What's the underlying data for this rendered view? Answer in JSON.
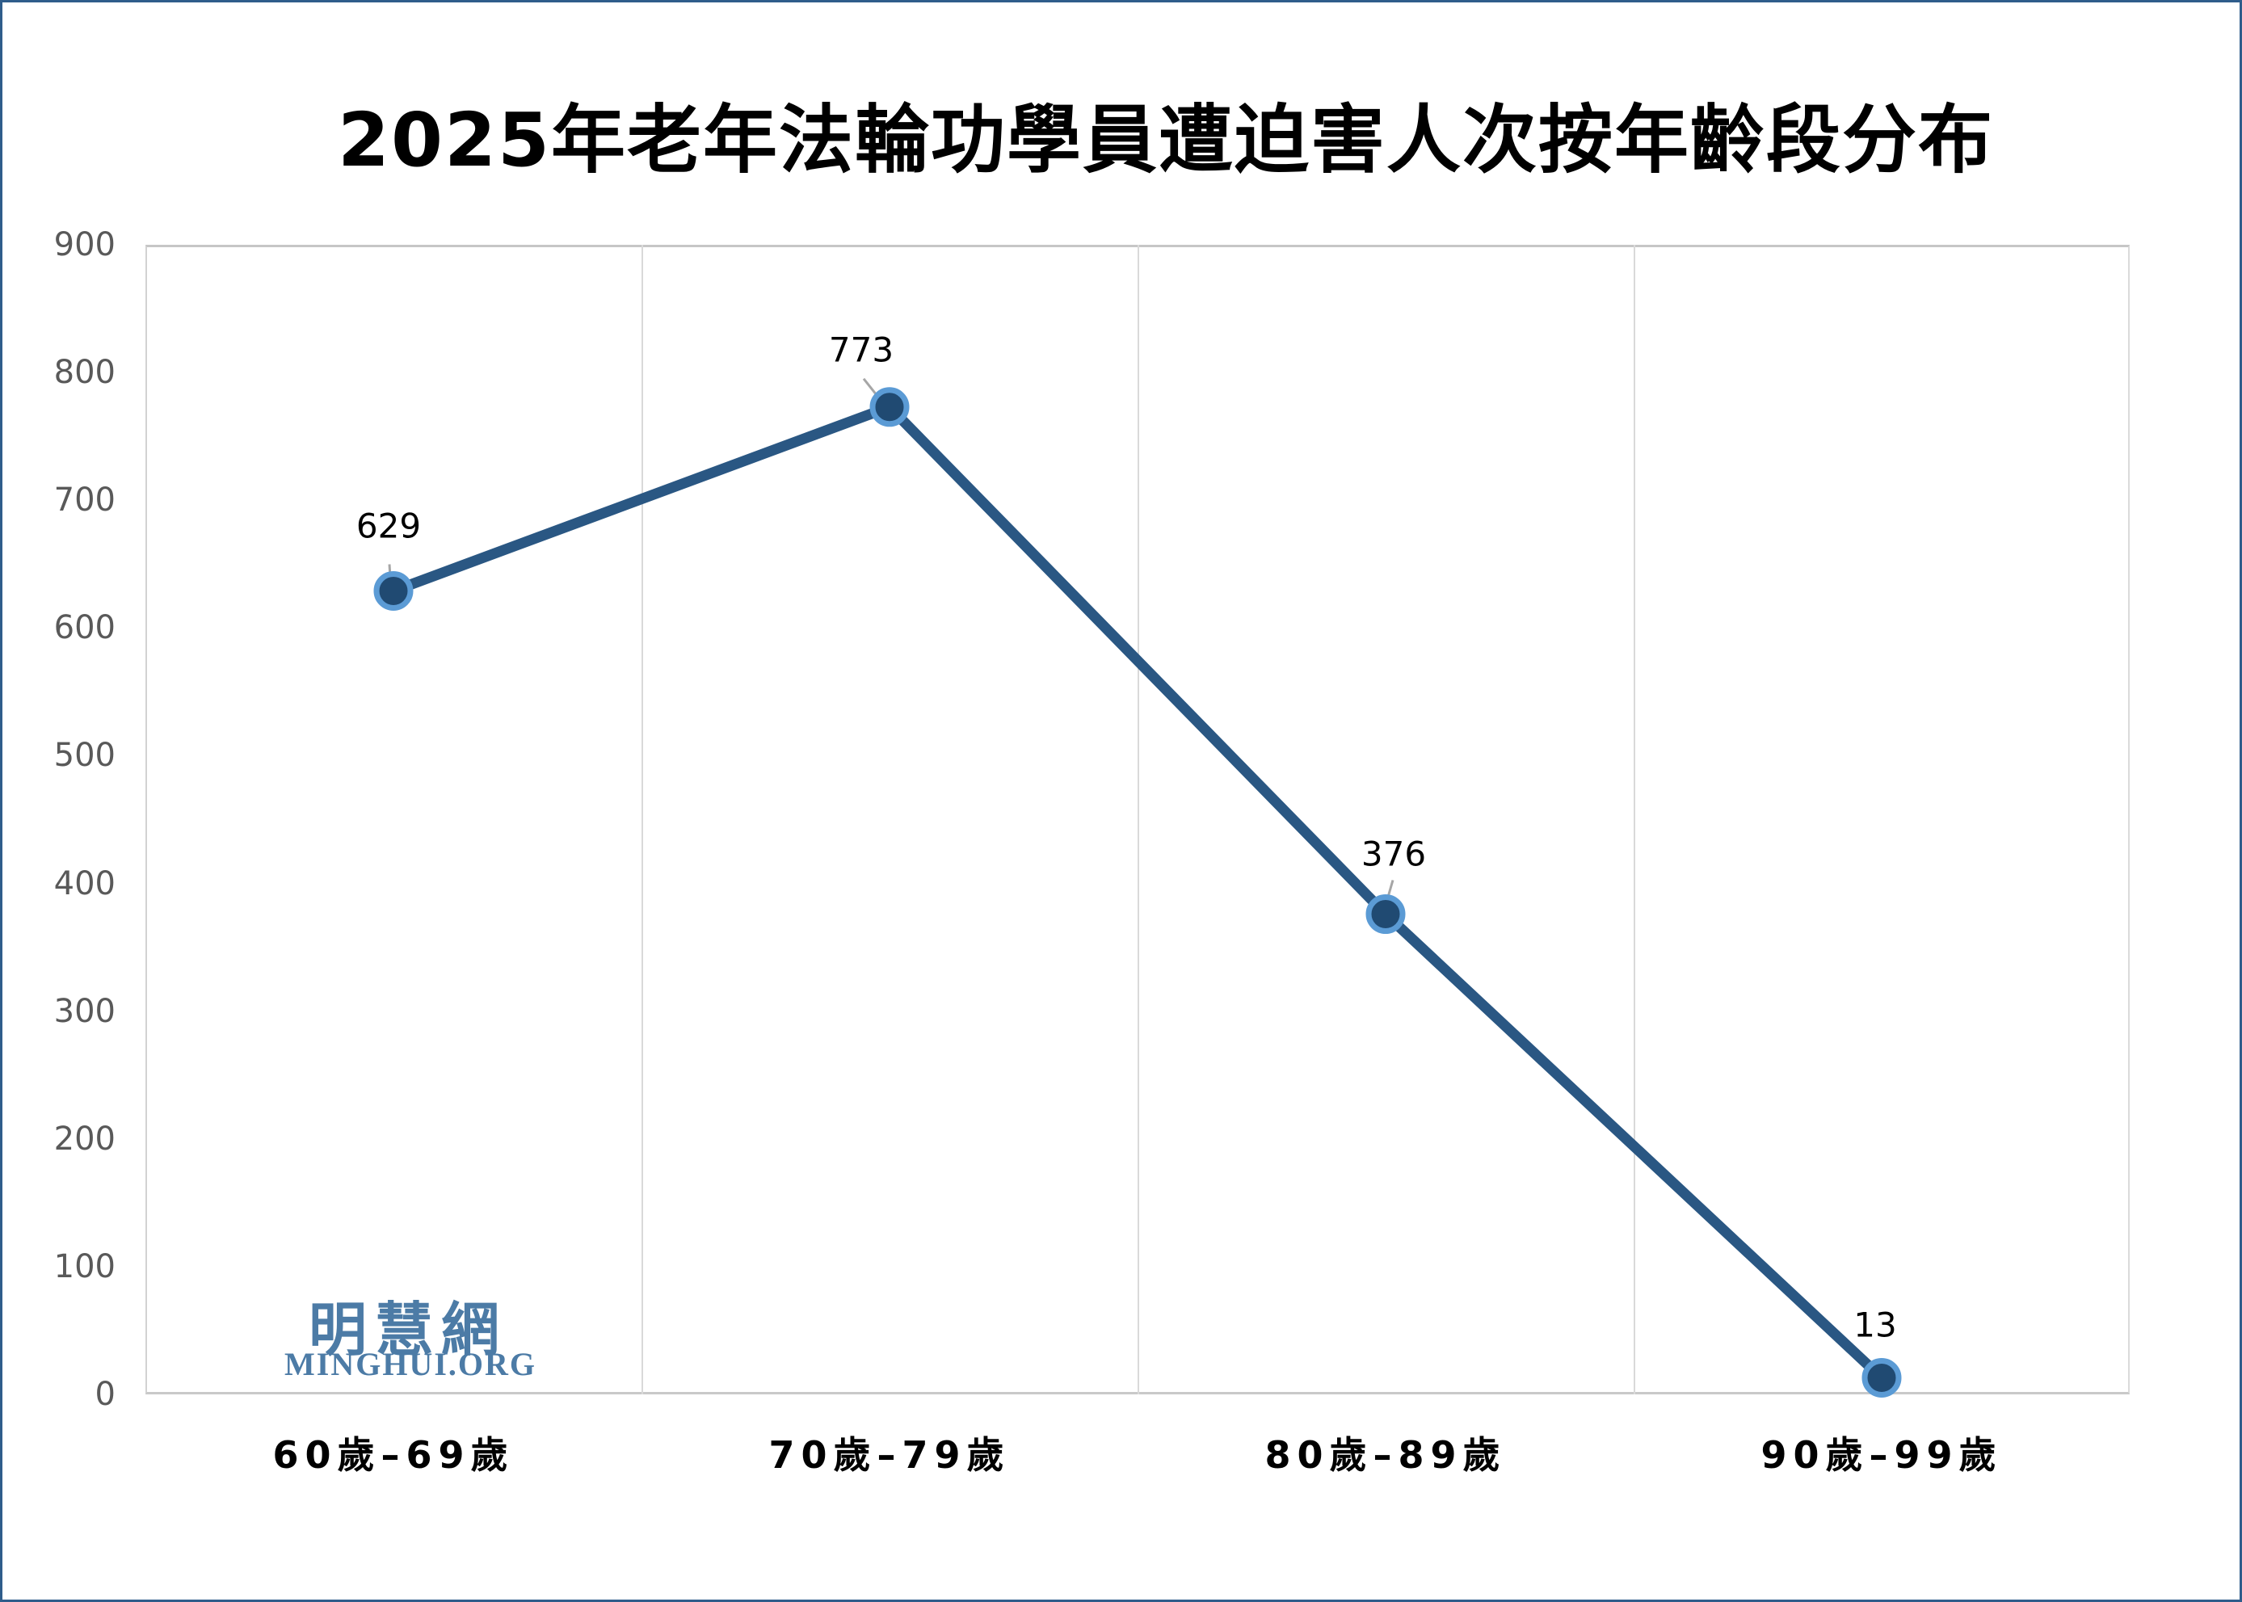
{
  "page": {
    "background": "#FFFFFF",
    "frame_color": "#2F5D8B"
  },
  "chart_data": {
    "type": "line",
    "title": "2025年老年法輪功學員遭迫害人次按年齡段分布",
    "categories": [
      "60歲–69歲",
      "70歲–79歲",
      "80歲–89歲",
      "90歲–99歲"
    ],
    "values": [
      629,
      773,
      376,
      13
    ],
    "data_labels": [
      "629",
      "773",
      "376",
      "13"
    ],
    "xlabel": "",
    "ylabel": "",
    "ylim": [
      0,
      900
    ],
    "yticks": [
      900,
      800,
      700,
      600,
      500,
      400,
      300,
      200,
      100,
      0
    ],
    "grid": "vertical-category-separators-only",
    "legend": "none",
    "colors": {
      "line": "#2A5783",
      "marker_fill": "#204A72",
      "marker_ring": "#5B9BD5",
      "leader_line": "#A6A6A6",
      "axis_text": "#595959",
      "gridline": "#D9D9D9",
      "axis_line": "#C6C6C6",
      "data_label_text": "#000000"
    }
  },
  "watermark": {
    "line1": "明慧網",
    "line2": "MINGHUI.ORG",
    "color": "#4C7BA6"
  }
}
